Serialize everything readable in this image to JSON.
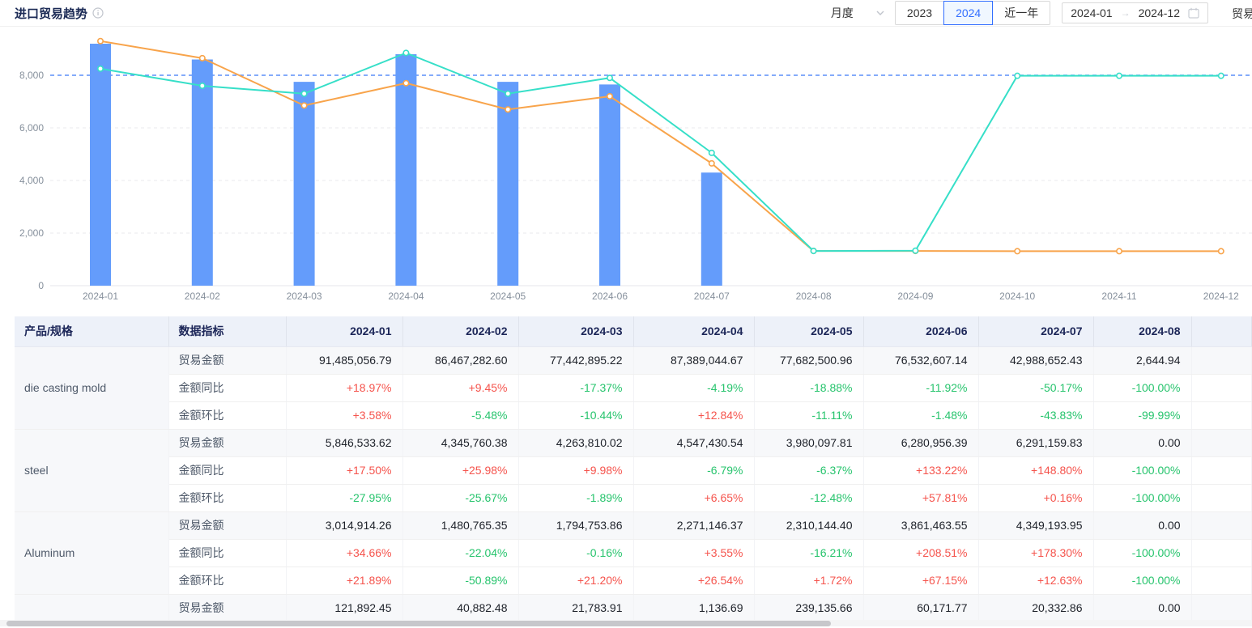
{
  "header": {
    "title": "进口贸易趋势",
    "controls": {
      "period_select": {
        "value": "月度"
      },
      "year_buttons": [
        {
          "label": "2023",
          "active": false
        },
        {
          "label": "2024",
          "active": true
        },
        {
          "label": "近一年",
          "active": false
        }
      ],
      "date_range": {
        "start": "2024-01",
        "arrow": "→",
        "end": "2024-12"
      },
      "partial_label": "贸易"
    }
  },
  "chart_data": {
    "type": "bar+line combo",
    "categories": [
      "2024-01",
      "2024-02",
      "2024-03",
      "2024-04",
      "2024-05",
      "2024-06",
      "2024-07",
      "2024-08",
      "2024-09",
      "2024-10",
      "2024-11",
      "2024-12"
    ],
    "series": [
      {
        "name": "trade-amount-bar",
        "type": "bar",
        "color": "#649cfb",
        "values": [
          9200,
          8600,
          7750,
          8800,
          7750,
          7650,
          4300,
          null,
          null,
          null,
          null,
          null
        ]
      },
      {
        "name": "orange-line",
        "type": "line",
        "color": "#f8a44b",
        "values": [
          9300,
          8650,
          6850,
          7700,
          6700,
          7200,
          4650,
          1320,
          1320,
          1310,
          1310,
          1310
        ]
      },
      {
        "name": "cyan-line",
        "type": "line",
        "color": "#36dfc8",
        "values": [
          8250,
          7600,
          7300,
          8850,
          7300,
          7900,
          5050,
          1320,
          1330,
          7980,
          7980,
          7980
        ]
      }
    ],
    "yticks": [
      0,
      2000,
      4000,
      6000,
      8000
    ],
    "ytick_labels": [
      "0",
      "2,000",
      "4,000",
      "6,000",
      "8,000"
    ],
    "ylim": [
      0,
      9600
    ],
    "reference_line": {
      "value": 8000,
      "color": "#5b8ff9",
      "style": "dashed"
    },
    "grid": "horizontal dashed",
    "legend": "none",
    "title": "",
    "xlabel": "",
    "ylabel": ""
  },
  "table": {
    "columns": [
      "产品/规格",
      "数据指标",
      "2024-01",
      "2024-02",
      "2024-03",
      "2024-04",
      "2024-05",
      "2024-06",
      "2024-07",
      "2024-08"
    ],
    "groups": [
      {
        "product": "die casting mold",
        "rows": [
          {
            "indicator": "贸易金额",
            "values": [
              "91,485,056.79",
              "86,467,282.60",
              "77,442,895.22",
              "87,389,044.67",
              "77,682,500.96",
              "76,532,607.14",
              "42,988,652.43",
              "2,644.94"
            ]
          },
          {
            "indicator": "金额同比",
            "values": [
              "+18.97%",
              "+9.45%",
              "-17.37%",
              "-4.19%",
              "-18.88%",
              "-11.92%",
              "-50.17%",
              "-100.00%"
            ]
          },
          {
            "indicator": "金额环比",
            "values": [
              "+3.58%",
              "-5.48%",
              "-10.44%",
              "+12.84%",
              "-11.11%",
              "-1.48%",
              "-43.83%",
              "-99.99%"
            ]
          }
        ]
      },
      {
        "product": "steel",
        "rows": [
          {
            "indicator": "贸易金额",
            "values": [
              "5,846,533.62",
              "4,345,760.38",
              "4,263,810.02",
              "4,547,430.54",
              "3,980,097.81",
              "6,280,956.39",
              "6,291,159.83",
              "0.00"
            ]
          },
          {
            "indicator": "金额同比",
            "values": [
              "+17.50%",
              "+25.98%",
              "+9.98%",
              "-6.79%",
              "-6.37%",
              "+133.22%",
              "+148.80%",
              "-100.00%"
            ]
          },
          {
            "indicator": "金额环比",
            "values": [
              "-27.95%",
              "-25.67%",
              "-1.89%",
              "+6.65%",
              "-12.48%",
              "+57.81%",
              "+0.16%",
              "-100.00%"
            ]
          }
        ]
      },
      {
        "product": "Aluminum",
        "rows": [
          {
            "indicator": "贸易金额",
            "values": [
              "3,014,914.26",
              "1,480,765.35",
              "1,794,753.86",
              "2,271,146.37",
              "2,310,144.40",
              "3,861,463.55",
              "4,349,193.95",
              "0.00"
            ]
          },
          {
            "indicator": "金额同比",
            "values": [
              "+34.66%",
              "-22.04%",
              "-0.16%",
              "+3.55%",
              "-16.21%",
              "+208.51%",
              "+178.30%",
              "-100.00%"
            ]
          },
          {
            "indicator": "金额环比",
            "values": [
              "+21.89%",
              "-50.89%",
              "+21.20%",
              "+26.54%",
              "+1.72%",
              "+67.15%",
              "+12.63%",
              "-100.00%"
            ]
          }
        ]
      },
      {
        "product": "",
        "rows": [
          {
            "indicator": "贸易金额",
            "values": [
              "121,892.45",
              "40,882.48",
              "21,783.91",
              "1,136.69",
              "239,135.66",
              "60,171.77",
              "20,332.86",
              "0.00"
            ]
          }
        ]
      }
    ]
  }
}
